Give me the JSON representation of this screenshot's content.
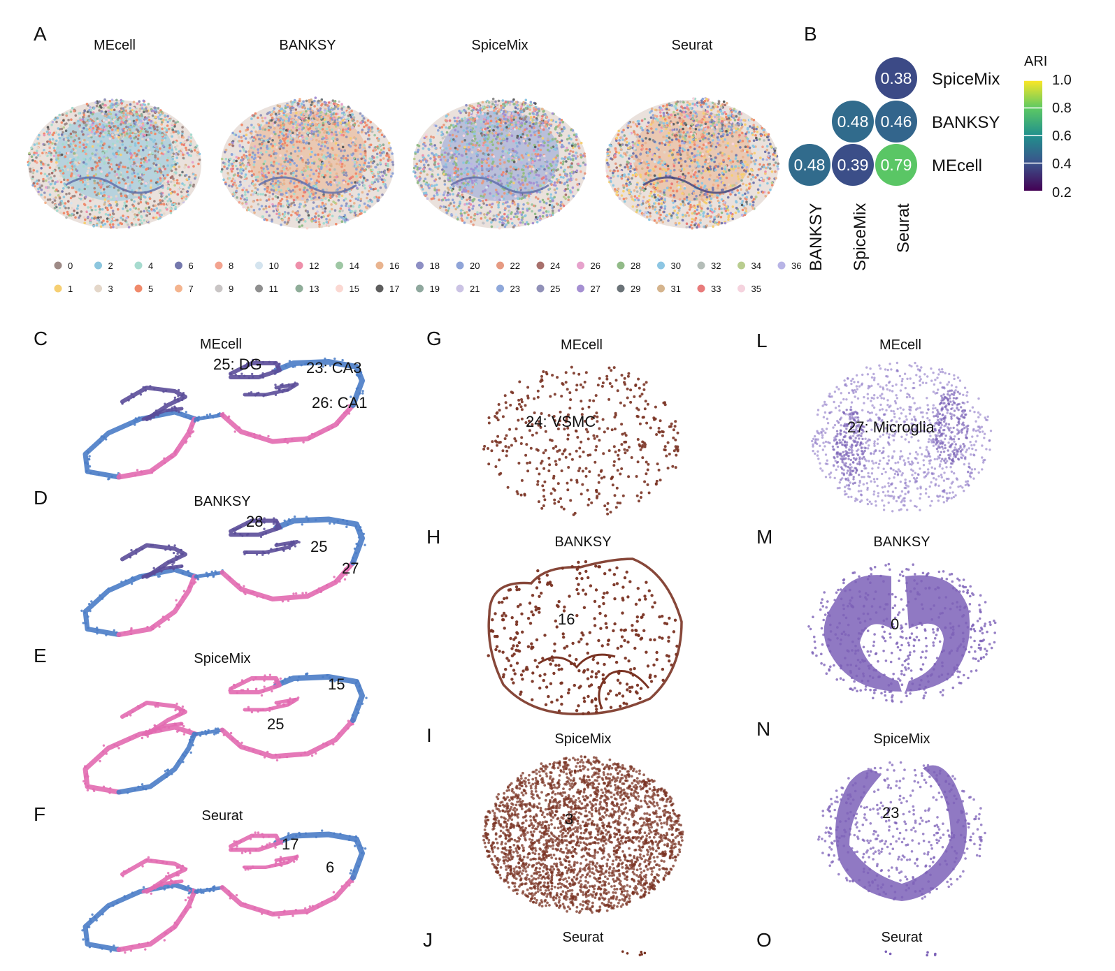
{
  "panel_labels": {
    "A": "A",
    "B": "B",
    "C": "C",
    "D": "D",
    "E": "E",
    "F": "F",
    "G": "G",
    "H": "H",
    "I": "I",
    "J": "J",
    "L": "L",
    "M": "M",
    "N": "N",
    "O": "O"
  },
  "panelA": {
    "titles": [
      "MEcell",
      "BANKSY",
      "SpiceMix",
      "Seurat"
    ],
    "legend": [
      {
        "label": "0",
        "color": "#9e8a86"
      },
      {
        "label": "1",
        "color": "#f6cf72"
      },
      {
        "label": "2",
        "color": "#8cc6de"
      },
      {
        "label": "3",
        "color": "#e4d7c9"
      },
      {
        "label": "4",
        "color": "#a7dbcf"
      },
      {
        "label": "5",
        "color": "#f08a6b"
      },
      {
        "label": "6",
        "color": "#7478ad"
      },
      {
        "label": "7",
        "color": "#f4b48e"
      },
      {
        "label": "8",
        "color": "#f3a38f"
      },
      {
        "label": "9",
        "color": "#c9c5c5"
      },
      {
        "label": "10",
        "color": "#d4e4ef"
      },
      {
        "label": "11",
        "color": "#8f8f8f"
      },
      {
        "label": "12",
        "color": "#ee8faa"
      },
      {
        "label": "13",
        "color": "#8fad99"
      },
      {
        "label": "14",
        "color": "#9ec7a4"
      },
      {
        "label": "15",
        "color": "#fbd8d2"
      },
      {
        "label": "16",
        "color": "#e9b48f"
      },
      {
        "label": "17",
        "color": "#5e5e5e"
      },
      {
        "label": "18",
        "color": "#8d8fc4"
      },
      {
        "label": "19",
        "color": "#8fa89e"
      },
      {
        "label": "20",
        "color": "#8fa4d8"
      },
      {
        "label": "21",
        "color": "#cbc3e4"
      },
      {
        "label": "22",
        "color": "#e69a82"
      },
      {
        "label": "23",
        "color": "#8fa8da"
      },
      {
        "label": "24",
        "color": "#a8706c"
      },
      {
        "label": "25",
        "color": "#9191b8"
      },
      {
        "label": "26",
        "color": "#e6a2cc"
      },
      {
        "label": "27",
        "color": "#a590d2"
      },
      {
        "label": "28",
        "color": "#92bb88"
      },
      {
        "label": "29",
        "color": "#6b7378"
      },
      {
        "label": "30",
        "color": "#8dc6e3"
      },
      {
        "label": "31",
        "color": "#d5b48d"
      },
      {
        "label": "32",
        "color": "#b4bdb8"
      },
      {
        "label": "33",
        "color": "#e87b7b"
      },
      {
        "label": "34",
        "color": "#b9cd8f"
      },
      {
        "label": "35",
        "color": "#f5d3de"
      },
      {
        "label": "36",
        "color": "#b8b4e6"
      }
    ]
  },
  "chart_data": {
    "type": "heatmap",
    "legend_title": "ARI",
    "colorbar_ticks": [
      "1.0",
      "0.8",
      "0.6",
      "0.4",
      "0.2"
    ],
    "colorbar_range": [
      0.2,
      1.0
    ],
    "row_labels": [
      "SpiceMix",
      "BANKSY",
      "MEcell"
    ],
    "col_labels": [
      "BANKSY",
      "SpiceMix",
      "Seurat"
    ],
    "cells": [
      {
        "row": "SpiceMix",
        "col": "Seurat",
        "value": 0.38,
        "label": "0.38"
      },
      {
        "row": "BANKSY",
        "col": "SpiceMix",
        "value": 0.48,
        "label": "0.48"
      },
      {
        "row": "BANKSY",
        "col": "Seurat",
        "value": 0.46,
        "label": "0.46"
      },
      {
        "row": "MEcell",
        "col": "BANKSY",
        "value": 0.48,
        "label": "0.48"
      },
      {
        "row": "MEcell",
        "col": "SpiceMix",
        "value": 0.39,
        "label": "0.39"
      },
      {
        "row": "MEcell",
        "col": "Seurat",
        "value": 0.79,
        "label": "0.79"
      }
    ]
  },
  "panelsCF": [
    {
      "title": "MEcell",
      "annotations": [
        "25: DG",
        "23: CA3",
        "26: CA1"
      ]
    },
    {
      "title": "BANKSY",
      "annotations": [
        "28",
        "25",
        "27"
      ]
    },
    {
      "title": "SpiceMix",
      "annotations": [
        "15",
        "25"
      ]
    },
    {
      "title": "Seurat",
      "annotations": [
        "17",
        "6"
      ]
    }
  ],
  "panelsGJ": [
    {
      "title": "MEcell",
      "annotation": "24: VSMC"
    },
    {
      "title": "BANKSY",
      "annotation": "16"
    },
    {
      "title": "SpiceMix",
      "annotation": "3"
    },
    {
      "title": "Seurat",
      "annotation": ""
    }
  ],
  "panelsLO": [
    {
      "title": "MEcell",
      "annotation": "27: Microglia"
    },
    {
      "title": "BANKSY",
      "annotation": "0"
    },
    {
      "title": "SpiceMix",
      "annotation": "23"
    },
    {
      "title": "Seurat",
      "annotation": ""
    }
  ],
  "colors": {
    "purple": "#5b4d99",
    "blue": "#4a7cc7",
    "pink": "#e26ab0",
    "brown": "#7a3323",
    "violet": "#7d62b8"
  }
}
